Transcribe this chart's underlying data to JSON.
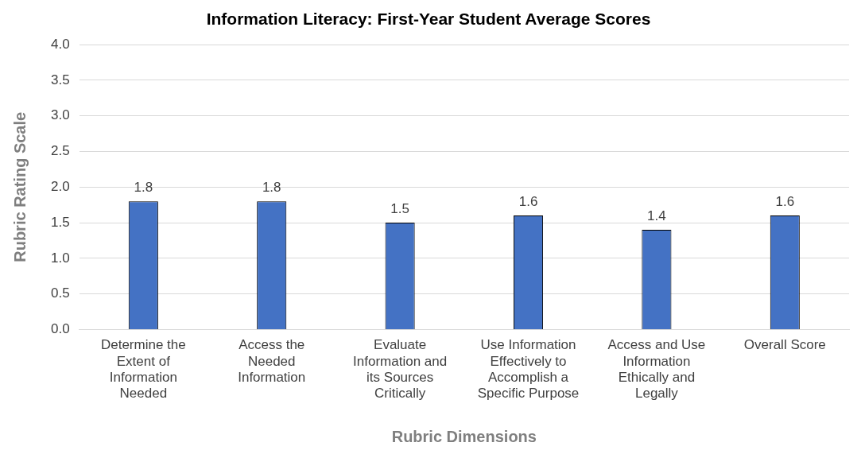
{
  "chart_data": {
    "type": "bar",
    "title": "Information Literacy: First-Year Student Average Scores",
    "xlabel": "Rubric Dimensions",
    "ylabel": "Rubric Rating Scale",
    "categories": [
      "Determine the Extent of Information Needed",
      "Access the Needed Information",
      "Evaluate Information and its Sources Critically",
      "Use Information Effectively to Accomplish a Specific Purpose",
      "Access and Use Information Ethically and Legally",
      "Overall Score"
    ],
    "values": [
      1.8,
      1.8,
      1.5,
      1.6,
      1.4,
      1.6
    ],
    "color": "#4472c4",
    "ylim": [
      0,
      4
    ],
    "yticks": [
      {
        "value": 0,
        "label": "0.0"
      },
      {
        "value": 0.5,
        "label": "0.5"
      },
      {
        "value": 1,
        "label": "1.0"
      },
      {
        "value": 1.5,
        "label": "1.5"
      },
      {
        "value": 2,
        "label": "2.0"
      },
      {
        "value": 2.5,
        "label": "2.5"
      },
      {
        "value": 3,
        "label": "3.0"
      },
      {
        "value": 3.5,
        "label": "3.5"
      },
      {
        "value": 4,
        "label": "4.0"
      }
    ],
    "grid": "y",
    "data_labels": true,
    "legend": false
  }
}
